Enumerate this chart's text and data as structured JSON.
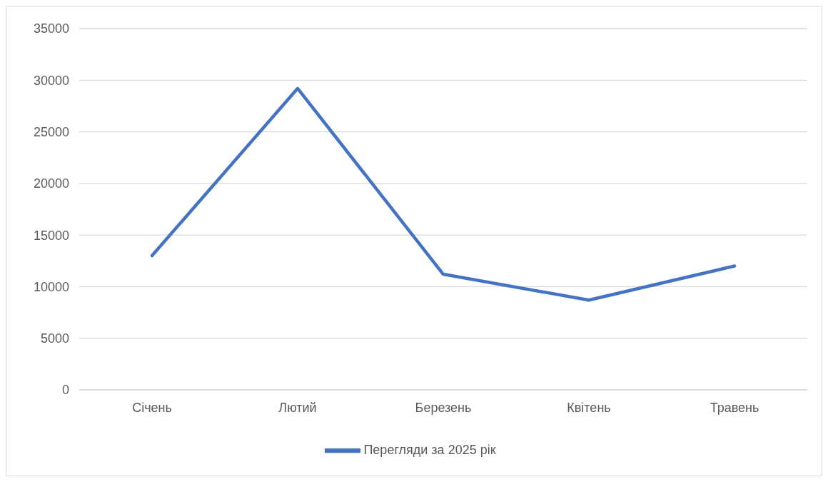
{
  "chart_data": {
    "type": "line",
    "categories": [
      "Січень",
      "Лютий",
      "Березень",
      "Квітень",
      "Травень"
    ],
    "series": [
      {
        "name": "Перегляди за 2025 рік",
        "color": "#4472c4",
        "values": [
          13000,
          29200,
          11200,
          8700,
          12000
        ]
      }
    ],
    "ylim": [
      0,
      35000
    ],
    "yticks": [
      0,
      5000,
      10000,
      15000,
      20000,
      25000,
      30000,
      35000
    ],
    "grid": "y",
    "legend": "bottom",
    "marker": "none",
    "line_style": "solid"
  }
}
